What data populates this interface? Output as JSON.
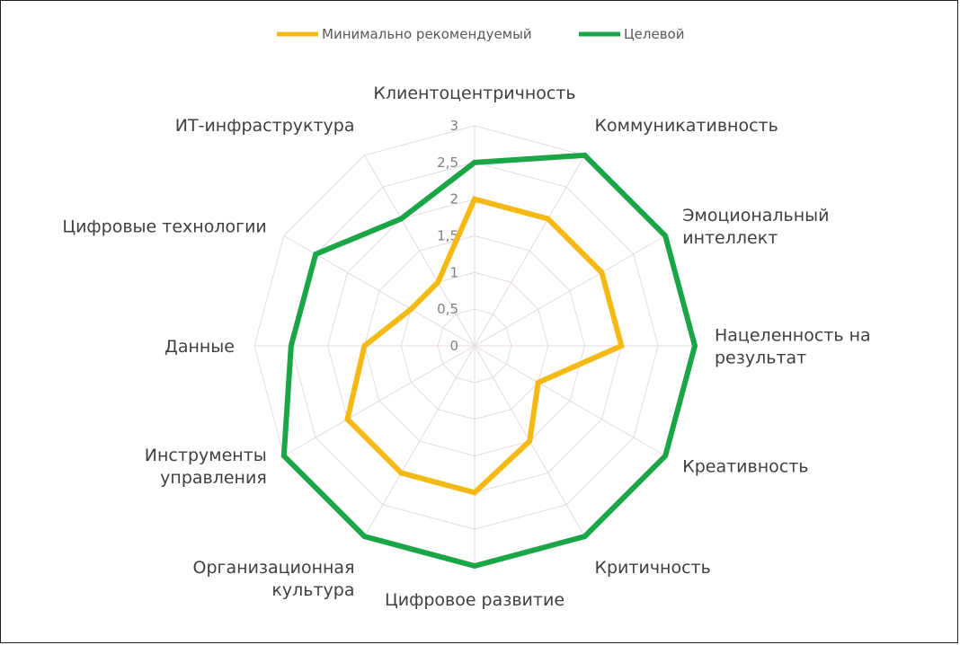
{
  "chart_data": {
    "type": "radar",
    "axes": [
      "Клиентоцентричность",
      "Коммуникативность",
      "Эмоциональный интеллект",
      "Нацеленность на результат",
      "Креативность",
      "Критичность",
      "Цифровое развитие",
      "Организационная культура",
      "Инструменты управления",
      "Данные",
      "Цифровые технологии",
      "ИТ-инфраструктура"
    ],
    "axis_label_lines": [
      [
        "Клиентоцентричность"
      ],
      [
        "Коммуникативность"
      ],
      [
        "Эмоциональный",
        "интеллект"
      ],
      [
        "Нацеленность на",
        "результат"
      ],
      [
        "Креативность"
      ],
      [
        "Критичность"
      ],
      [
        "Цифровое развитие"
      ],
      [
        "Организационная",
        "культура"
      ],
      [
        "Инструменты",
        "управления"
      ],
      [
        "Данные"
      ],
      [
        "Цифровые технологии"
      ],
      [
        "ИТ-инфраструктура"
      ]
    ],
    "ticks": [
      "0",
      "0,5",
      "1",
      "1,5",
      "2",
      "2,5",
      "3"
    ],
    "rmax": 3,
    "series": [
      {
        "name": "Минимально рекомендуемый",
        "color": "#f5b914",
        "values": [
          2,
          2,
          2,
          2,
          1,
          1.5,
          2,
          2,
          2,
          1.5,
          1,
          1
        ]
      },
      {
        "name": "Целевой",
        "color": "#1aa547",
        "values": [
          2.5,
          3,
          3,
          3,
          3,
          3,
          3,
          3,
          3,
          2.5,
          2.5,
          2
        ]
      }
    ],
    "legend": "top",
    "grid": true
  }
}
